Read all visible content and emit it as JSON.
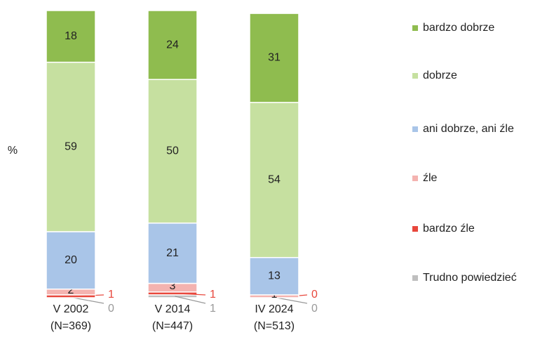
{
  "chart_data": {
    "type": "stacked_bar",
    "y_label": "%",
    "categories": [
      "V 2002",
      "V 2014",
      "IV 2024"
    ],
    "category_sublabels": [
      "(N=369)",
      "(N=447)",
      "(N=513)"
    ],
    "ylim": [
      0,
      100
    ],
    "series": [
      {
        "name": "Trudno powiedzieć",
        "color": "#bfbfbf",
        "values": [
          0,
          1,
          0
        ]
      },
      {
        "name": "bardzo źle",
        "color": "#e8473c",
        "values": [
          1,
          1,
          0
        ]
      },
      {
        "name": "źle",
        "color": "#f4b3b0",
        "values": [
          2,
          3,
          1
        ]
      },
      {
        "name": "ani dobrze, ani źle",
        "color": "#a9c5e8",
        "values": [
          20,
          21,
          13
        ]
      },
      {
        "name": "dobrze",
        "color": "#c6e0a0",
        "values": [
          59,
          50,
          54
        ]
      },
      {
        "name": "bardzo dobrze",
        "color": "#8fbc4f",
        "values": [
          18,
          24,
          31
        ]
      }
    ]
  }
}
